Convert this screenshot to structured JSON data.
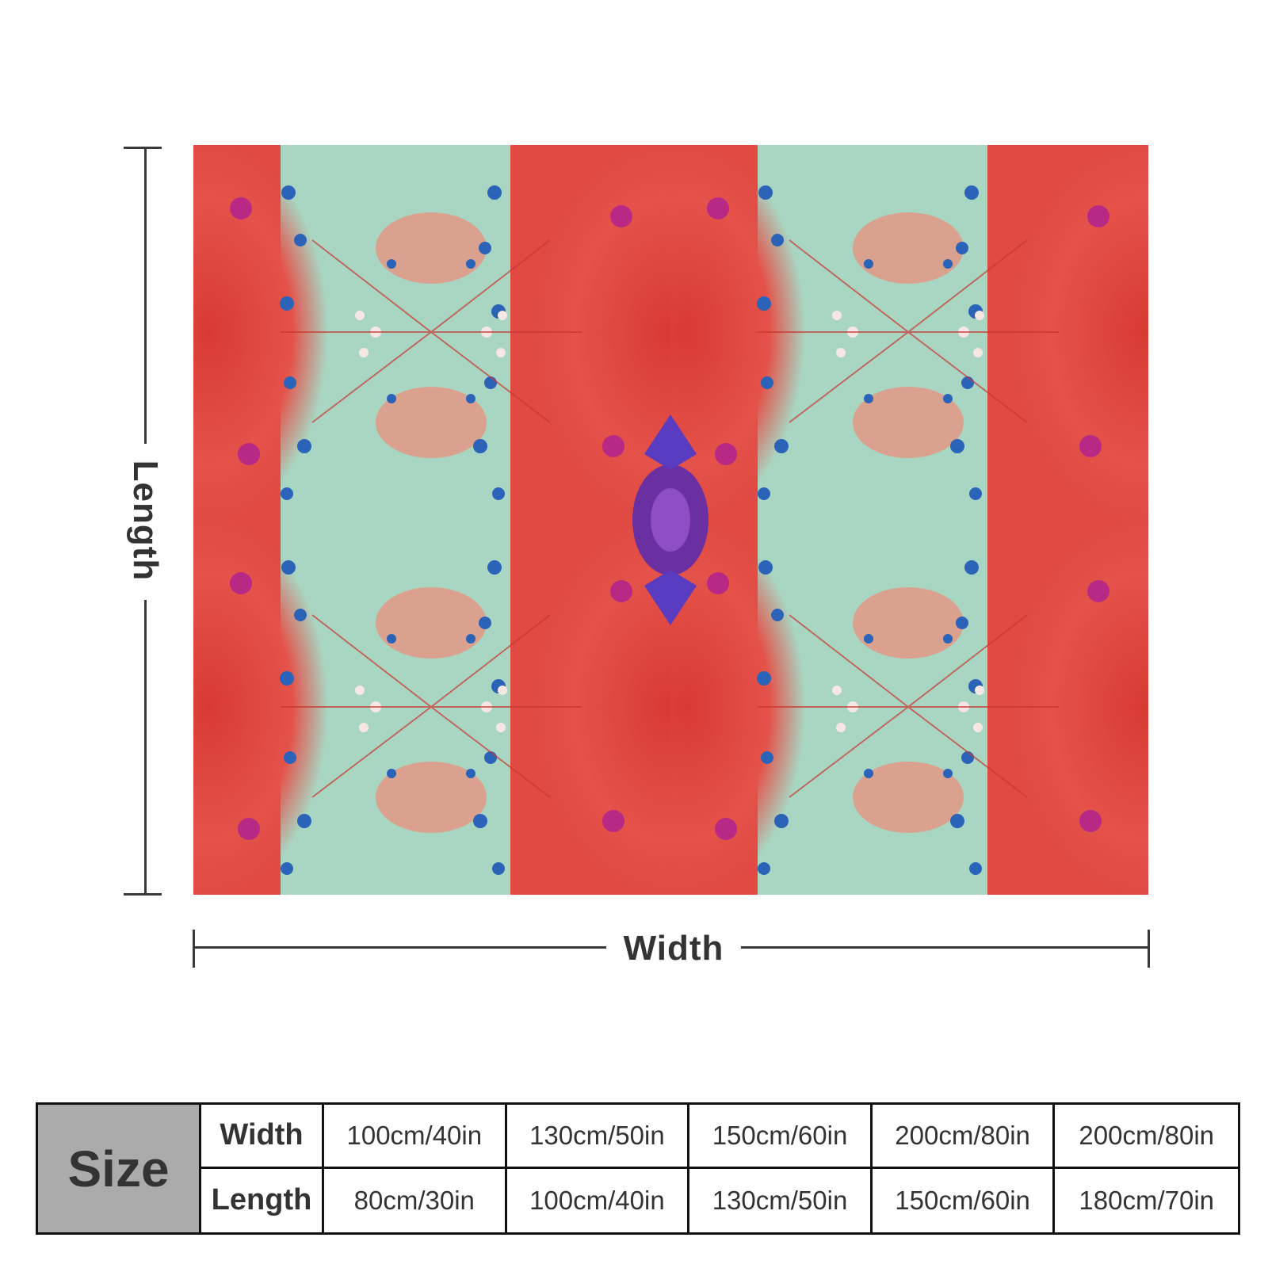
{
  "diagram": {
    "length_label": "Length",
    "width_label": "Width"
  },
  "colors": {
    "blanket_red": "#e3463f",
    "blanket_mint": "#a9d6c3",
    "blanket_blue": "#2a63b8",
    "blanket_purple": "#6a2fa0",
    "table_header_gray": "#ababab"
  },
  "size_table": {
    "title": "Size",
    "rows": [
      {
        "label": "Width",
        "values": [
          "100cm/40in",
          "130cm/50in",
          "150cm/60in",
          "200cm/80in",
          "200cm/80in"
        ]
      },
      {
        "label": "Length",
        "values": [
          "80cm/30in",
          "100cm/40in",
          "130cm/50in",
          "150cm/60in",
          "180cm/70in"
        ]
      }
    ]
  }
}
